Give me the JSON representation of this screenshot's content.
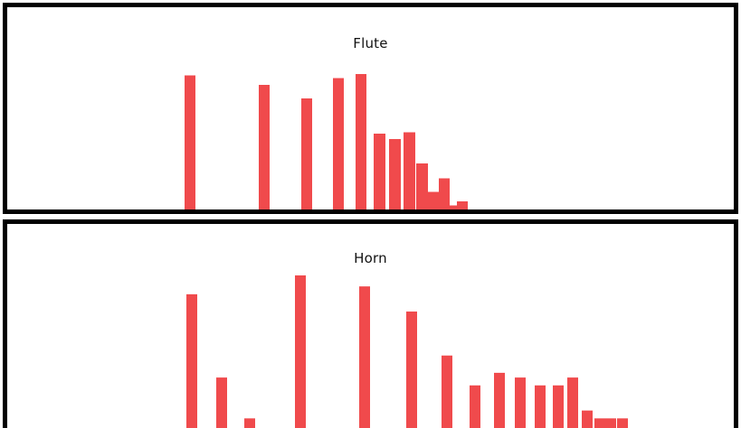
{
  "chart_data": [
    {
      "type": "bar",
      "title": "Flute",
      "xlabel": "",
      "ylabel": "",
      "grid": false,
      "legend": "none",
      "color": "#f04a4c",
      "ylim": [
        0,
        1
      ],
      "values": [
        0.99,
        0.92,
        0.82,
        0.97,
        1.0,
        0.56,
        0.52,
        0.57,
        0.34,
        0.13,
        0.23,
        0.03,
        0.06
      ],
      "x": [
        1,
        2,
        3,
        4,
        5,
        6,
        7,
        8,
        9,
        10,
        11,
        12,
        13
      ]
    },
    {
      "type": "bar",
      "title": "Horn",
      "xlabel": "",
      "ylabel": "",
      "grid": false,
      "legend": "none",
      "color": "#f04a4c",
      "ylim": [
        0,
        1
      ],
      "values": [
        0.88,
        0.35,
        0.09,
        1.0,
        0.93,
        0.77,
        0.49,
        0.3,
        0.38,
        0.35,
        0.3,
        0.3,
        0.35,
        0.14,
        0.09,
        0.09,
        0.09
      ],
      "x": [
        1,
        2,
        3,
        4,
        5,
        6,
        7,
        8,
        9,
        10,
        11,
        12,
        13,
        14,
        15,
        16,
        17
      ]
    }
  ]
}
